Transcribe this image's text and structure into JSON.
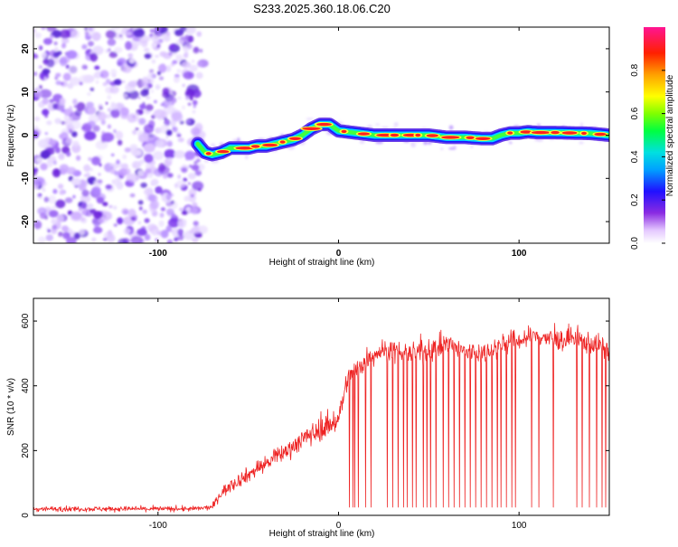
{
  "page_title": "S233.2025.360.18.06.C20",
  "chart_data": [
    {
      "type": "heatmap",
      "title": "",
      "xlabel": "Height of straight line (km)",
      "ylabel": "Frequency (Hz)",
      "xlim": [
        -169,
        150
      ],
      "ylim": [
        -25,
        25
      ],
      "x_ticks": [
        -100,
        0,
        100
      ],
      "y_ticks": [
        -20,
        -10,
        0,
        10,
        20
      ],
      "noise_region_x": [
        -169,
        -76
      ],
      "ridge": {
        "x": [
          -78,
          -74,
          -70,
          -65,
          -60,
          -55,
          -50,
          -45,
          -40,
          -35,
          -30,
          -25,
          -20,
          -15,
          -10,
          -5,
          0,
          10,
          20,
          30,
          40,
          50,
          60,
          70,
          80,
          85,
          90,
          95,
          100,
          105,
          110,
          120,
          130,
          140,
          150
        ],
        "y": [
          -2,
          -4,
          -4.5,
          -4,
          -3,
          -3,
          -3,
          -2.5,
          -2.5,
          -2,
          -1.5,
          -1,
          0,
          1.5,
          2.5,
          2.5,
          1,
          0.5,
          0,
          0,
          0,
          0,
          -0.5,
          -0.5,
          -0.8,
          -0.8,
          0,
          0.5,
          0.5,
          0.8,
          0.6,
          0.6,
          0.5,
          0.4,
          0
        ]
      },
      "colorbar": {
        "label": "Normalized spectral amplitude",
        "ticks": [
          "0.0",
          "0.2",
          "0.4",
          "0.6",
          "0.8"
        ],
        "range": [
          0,
          1
        ]
      }
    },
    {
      "type": "line",
      "title": "",
      "xlabel": "Height of straight line (km)",
      "ylabel": "SNR (10 * v/v)",
      "xlim": [
        -169,
        150
      ],
      "ylim": [
        0,
        670
      ],
      "x_ticks": [
        -100,
        0,
        100
      ],
      "y_ticks": [
        0,
        200,
        400,
        600
      ],
      "series": [
        {
          "color": "#ee2222",
          "x": [
            -169,
            -150,
            -120,
            -100,
            -80,
            -70,
            -65,
            -60,
            -55,
            -50,
            -45,
            -40,
            -30,
            -25,
            -20,
            -15,
            -10,
            -5,
            0,
            5,
            10,
            15,
            20,
            25,
            30,
            40,
            50,
            60,
            70,
            80,
            90,
            100,
            110,
            120,
            130,
            140,
            150
          ],
          "baseline": [
            20,
            20,
            20,
            20,
            20,
            25,
            70,
            90,
            110,
            125,
            145,
            160,
            195,
            215,
            235,
            250,
            265,
            280,
            300,
            420,
            450,
            480,
            500,
            510,
            505,
            500,
            510,
            530,
            505,
            500,
            530,
            540,
            555,
            540,
            545,
            530,
            515
          ],
          "noise": [
            8,
            8,
            8,
            8,
            8,
            8,
            18,
            20,
            22,
            24,
            25,
            25,
            28,
            30,
            32,
            35,
            35,
            38,
            40,
            38,
            36,
            36,
            34,
            34,
            34,
            34,
            34,
            34,
            34,
            34,
            34,
            34,
            34,
            34,
            34,
            34,
            34
          ],
          "dropout_x": [
            6,
            8,
            9,
            11,
            15,
            18,
            27,
            30,
            33,
            36,
            38,
            41,
            43,
            47,
            49,
            51,
            54,
            58,
            61,
            64,
            67,
            70,
            73,
            76,
            79,
            82,
            85,
            88,
            90,
            93,
            96,
            98,
            107,
            111,
            119,
            132,
            135,
            139,
            143,
            146,
            148
          ],
          "dropout_y": 25
        }
      ]
    }
  ]
}
